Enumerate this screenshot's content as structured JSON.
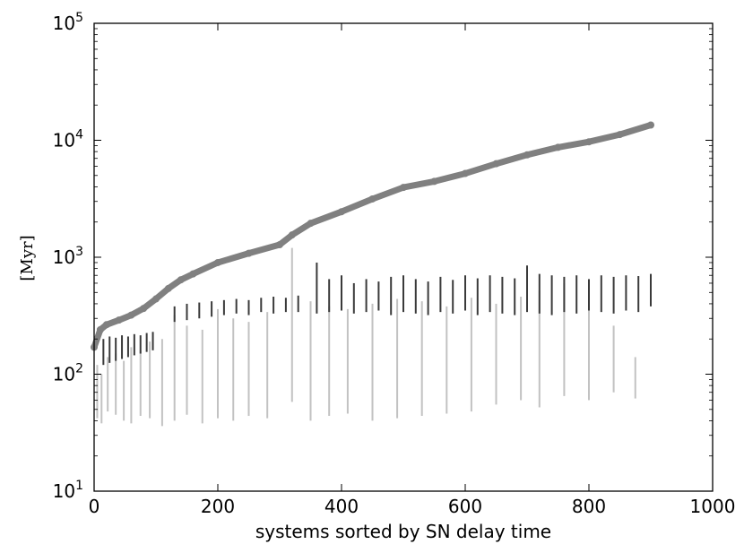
{
  "chart_data": {
    "type": "scatter",
    "title": "",
    "xlabel": "systems sorted by SN delay time",
    "ylabel": "[Myr]",
    "xlim": [
      0,
      1000
    ],
    "ylim": [
      10,
      100000
    ],
    "yscale": "log",
    "grid": false,
    "x_ticks": [
      "0",
      "200",
      "400",
      "600",
      "800",
      "1000"
    ],
    "y_tick_mantissa": "10",
    "y_tick_exponents": [
      "1",
      "2",
      "3",
      "4",
      "5"
    ],
    "colors": {
      "delay": "#808080",
      "light": "#c2c2c2",
      "dark": "#3a3a3a"
    },
    "series": [
      {
        "role": "sn-delay-time",
        "x": [
          0,
          10,
          20,
          40,
          60,
          80,
          100,
          120,
          140,
          160,
          200,
          250,
          300,
          320,
          350,
          400,
          450,
          500,
          550,
          600,
          650,
          700,
          750,
          800,
          850,
          900
        ],
        "y": [
          170,
          240,
          265,
          290,
          320,
          365,
          440,
          540,
          640,
          720,
          900,
          1080,
          1280,
          1550,
          1950,
          2450,
          3150,
          3950,
          4450,
          5200,
          6300,
          7500,
          8700,
          9700,
          11200,
          13500
        ]
      },
      {
        "role": "light-vertical-segments",
        "x": [
          5,
          12,
          22,
          35,
          48,
          60,
          75,
          90,
          110,
          130,
          150,
          175,
          200,
          225,
          250,
          280,
          320,
          350,
          380,
          410,
          450,
          490,
          530,
          570,
          610,
          650,
          690,
          720,
          760,
          800,
          840,
          875
        ],
        "y_low": [
          42,
          38,
          48,
          45,
          40,
          38,
          44,
          42,
          36,
          40,
          45,
          38,
          42,
          40,
          44,
          42,
          58,
          40,
          44,
          46,
          40,
          42,
          44,
          46,
          48,
          55,
          60,
          52,
          65,
          60,
          70,
          62
        ],
        "y_high": [
          120,
          100,
          140,
          150,
          130,
          170,
          160,
          190,
          200,
          320,
          260,
          240,
          360,
          300,
          280,
          340,
          1200,
          420,
          380,
          360,
          400,
          440,
          420,
          380,
          450,
          400,
          460,
          520,
          600,
          480,
          260,
          140
        ]
      },
      {
        "role": "dark-vertical-segments",
        "x": [
          15,
          25,
          35,
          45,
          55,
          65,
          75,
          85,
          95,
          130,
          150,
          170,
          190,
          210,
          230,
          250,
          270,
          290,
          310,
          330,
          360,
          380,
          400,
          420,
          440,
          460,
          480,
          500,
          520,
          540,
          560,
          580,
          600,
          620,
          640,
          660,
          680,
          700,
          720,
          740,
          760,
          780,
          800,
          820,
          840,
          860,
          880,
          900
        ],
        "y_low": [
          120,
          125,
          130,
          135,
          140,
          145,
          150,
          155,
          160,
          280,
          290,
          300,
          310,
          320,
          330,
          320,
          340,
          330,
          340,
          340,
          330,
          340,
          350,
          330,
          340,
          350,
          320,
          340,
          330,
          320,
          340,
          330,
          350,
          320,
          340,
          330,
          320,
          340,
          330,
          320,
          340,
          330,
          350,
          340,
          330,
          350,
          340,
          380
        ],
        "y_high": [
          200,
          210,
          205,
          215,
          210,
          220,
          215,
          225,
          230,
          380,
          400,
          410,
          420,
          430,
          440,
          430,
          450,
          460,
          450,
          470,
          900,
          650,
          700,
          600,
          650,
          620,
          680,
          700,
          650,
          620,
          680,
          640,
          700,
          660,
          700,
          680,
          660,
          850,
          720,
          700,
          680,
          700,
          650,
          700,
          680,
          700,
          690,
          720
        ]
      }
    ]
  }
}
